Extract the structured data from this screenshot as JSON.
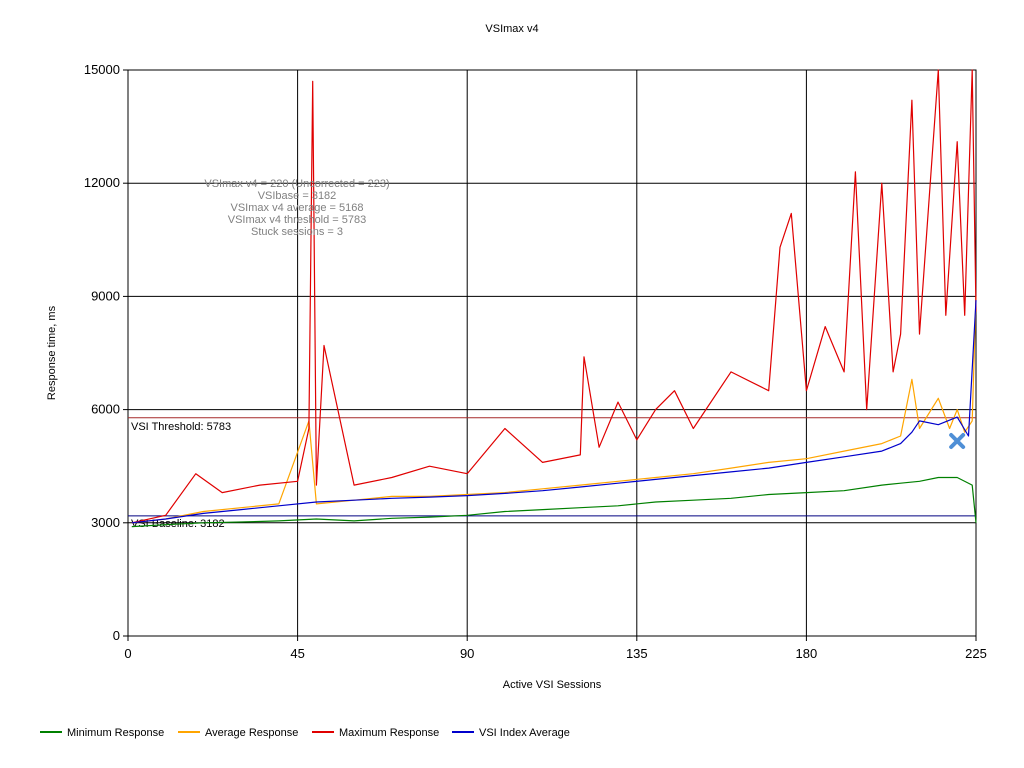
{
  "chart_data": {
    "type": "line",
    "title": "VSImax v4",
    "xlabel": "Active VSI Sessions",
    "ylabel": "Response time, ms",
    "xlim": [
      0,
      225
    ],
    "ylim": [
      0,
      15000
    ],
    "x_ticks": [
      0,
      45,
      90,
      135,
      180,
      225
    ],
    "y_ticks": [
      0,
      3000,
      6000,
      9000,
      12000,
      15000
    ],
    "x_tick_labels": [
      "0",
      "45",
      "90",
      "135",
      "180",
      "225"
    ],
    "y_tick_labels": [
      "0",
      "3000",
      "6000",
      "9000",
      "12000",
      "15000"
    ],
    "grid": true,
    "legend_position": "bottom-left",
    "annotations": [
      "VSImax v4 = 220 (Uncorrected = 223)",
      "VSIbase = 3182",
      "VSImax v4 average = 5168",
      "VSImax v4 threshold = 5783",
      "Stuck sessions = 3"
    ],
    "reference_lines": [
      {
        "label": "VSI Threshold: 5783",
        "value": 5783,
        "color": "#a52a2a"
      },
      {
        "label": "VSI Baseline: 3182",
        "value": 3182,
        "color": "#000080"
      }
    ],
    "vsimax_marker": {
      "x": 220,
      "y": 5168,
      "color": "#4f8fd6"
    },
    "series": [
      {
        "name": "Minimum Response",
        "color": "#008000",
        "x": [
          1,
          10,
          20,
          30,
          40,
          50,
          60,
          70,
          80,
          90,
          100,
          110,
          120,
          130,
          140,
          150,
          160,
          170,
          180,
          190,
          200,
          205,
          210,
          215,
          220,
          224,
          225
        ],
        "y": [
          2900,
          2950,
          3000,
          3020,
          3050,
          3100,
          3050,
          3120,
          3150,
          3200,
          3300,
          3350,
          3400,
          3450,
          3550,
          3600,
          3650,
          3750,
          3800,
          3850,
          4000,
          4050,
          4100,
          4200,
          4200,
          4000,
          3000
        ]
      },
      {
        "name": "Average Response",
        "color": "#ffa500",
        "x": [
          1,
          10,
          20,
          30,
          40,
          48,
          50,
          60,
          70,
          80,
          90,
          100,
          110,
          120,
          130,
          140,
          150,
          160,
          170,
          180,
          190,
          200,
          205,
          208,
          210,
          215,
          218,
          220,
          222,
          224,
          225
        ],
        "y": [
          3000,
          3100,
          3300,
          3400,
          3500,
          5700,
          3500,
          3600,
          3700,
          3700,
          3750,
          3800,
          3900,
          4000,
          4100,
          4200,
          4300,
          4450,
          4600,
          4700,
          4900,
          5100,
          5300,
          6800,
          5500,
          6300,
          5500,
          6000,
          5400,
          5700,
          9000
        ]
      },
      {
        "name": "Maximum Response",
        "color": "#e00000",
        "x": [
          1,
          10,
          18,
          25,
          35,
          45,
          48,
          49,
          50,
          52,
          60,
          70,
          80,
          90,
          100,
          110,
          120,
          121,
          125,
          130,
          135,
          140,
          145,
          150,
          160,
          170,
          173,
          176,
          180,
          185,
          190,
          193,
          196,
          200,
          203,
          205,
          208,
          210,
          215,
          217,
          220,
          222,
          224,
          225
        ],
        "y": [
          3000,
          3200,
          4300,
          3800,
          4000,
          4100,
          5500,
          14700,
          4000,
          7700,
          4000,
          4200,
          4500,
          4300,
          5500,
          4600,
          4800,
          7400,
          5000,
          6200,
          5200,
          6000,
          6500,
          5500,
          7000,
          6500,
          10300,
          11200,
          6500,
          8200,
          7000,
          12300,
          6000,
          12000,
          7000,
          8000,
          14200,
          8000,
          15000,
          8500,
          13100,
          8500,
          15000,
          8600
        ]
      },
      {
        "name": "VSI Index Average",
        "color": "#0000cc",
        "x": [
          1,
          10,
          20,
          30,
          40,
          50,
          60,
          70,
          80,
          90,
          100,
          110,
          120,
          130,
          140,
          150,
          160,
          170,
          180,
          190,
          200,
          205,
          208,
          210,
          215,
          220,
          223,
          225
        ],
        "y": [
          3000,
          3100,
          3250,
          3350,
          3450,
          3550,
          3600,
          3650,
          3680,
          3720,
          3780,
          3850,
          3950,
          4050,
          4150,
          4250,
          4350,
          4450,
          4600,
          4750,
          4900,
          5100,
          5400,
          5700,
          5600,
          5800,
          5300,
          8900
        ]
      }
    ]
  }
}
